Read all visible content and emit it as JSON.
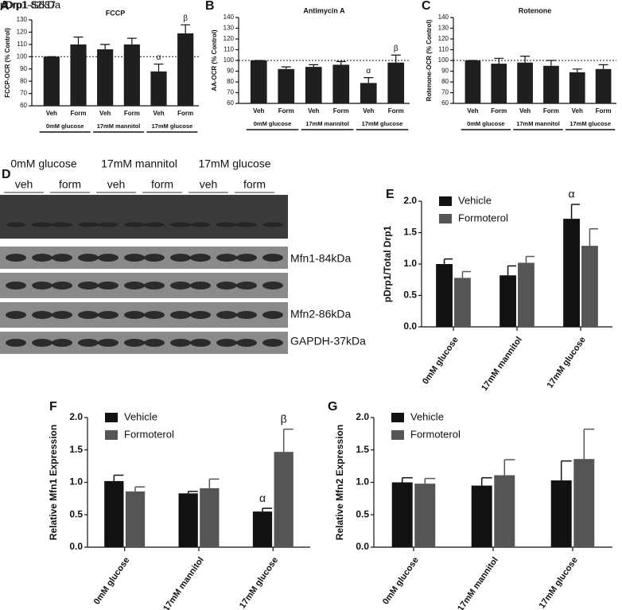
{
  "chart_data": [
    {
      "type": "bar",
      "panel": "A",
      "title": "FCCP",
      "ylabel": "FCCP-OCR (% Control)",
      "categories": [
        "Veh",
        "Form",
        "Veh",
        "Form",
        "Veh",
        "Form"
      ],
      "groups": [
        "0mM glucose",
        "17mM mannitol",
        "17mM glucose"
      ],
      "values": [
        100,
        110,
        106,
        110,
        88,
        119
      ],
      "errors": [
        0,
        6,
        4,
        5,
        6,
        7
      ],
      "annotations": [
        null,
        null,
        null,
        null,
        "α",
        "β"
      ],
      "color": "#1f1f1f",
      "reference_line": 100,
      "ylim": [
        60,
        130
      ],
      "yticks": [
        60,
        70,
        80,
        90,
        100,
        110,
        120,
        130
      ]
    },
    {
      "type": "bar",
      "panel": "B",
      "title": "Antimycin A",
      "ylabel": "AA-OCR (% Control)",
      "categories": [
        "Veh",
        "Form",
        "Veh",
        "Form",
        "Veh",
        "Form"
      ],
      "groups": [
        "0mM glucose",
        "17mM mannitol",
        "17mM glucose"
      ],
      "values": [
        100,
        92,
        94,
        96,
        79,
        98
      ],
      "errors": [
        0,
        2,
        2,
        3,
        5,
        7
      ],
      "annotations": [
        null,
        null,
        null,
        null,
        "α",
        "β"
      ],
      "color": "#1f1f1f",
      "reference_line": 100,
      "ylim": [
        60,
        140
      ],
      "yticks": [
        60,
        70,
        80,
        90,
        100,
        110,
        120,
        130,
        140
      ]
    },
    {
      "type": "bar",
      "panel": "C",
      "title": "Rotenone",
      "ylabel": "Rotenone-OCR (% Control)",
      "categories": [
        "Veh",
        "Form",
        "Veh",
        "Form",
        "Veh",
        "Form"
      ],
      "groups": [
        "0mM glucose",
        "17mM mannitol",
        "17mM glucose"
      ],
      "values": [
        100,
        97,
        98,
        95,
        89,
        92
      ],
      "errors": [
        0,
        5,
        6,
        5,
        3,
        4
      ],
      "annotations": [
        null,
        null,
        null,
        null,
        null,
        null
      ],
      "color": "#1f1f1f",
      "reference_line": 100,
      "ylim": [
        60,
        140
      ],
      "yticks": [
        60,
        70,
        80,
        90,
        100,
        110,
        120,
        130,
        140
      ]
    },
    {
      "type": "grouped_bar",
      "panel": "E",
      "ylabel": "pDrp1/Total Drp1",
      "categories": [
        "0mM glucose",
        "17mM mannitol",
        "17mM glucose"
      ],
      "series": [
        {
          "name": "Vehicle",
          "color": "#111111",
          "values": [
            1.0,
            0.82,
            1.72
          ],
          "errors": [
            0.08,
            0.15,
            0.23
          ],
          "annotations": [
            null,
            null,
            "α"
          ]
        },
        {
          "name": "Formoterol",
          "color": "#555555",
          "values": [
            0.78,
            1.02,
            1.29
          ],
          "errors": [
            0.1,
            0.1,
            0.27
          ],
          "annotations": [
            null,
            null,
            null
          ]
        }
      ],
      "ylim": [
        0,
        2
      ],
      "yticks": [
        {
          "value": 0,
          "label": "0.0"
        },
        0.5,
        {
          "value": 1,
          "label": "1.0"
        },
        1.5,
        {
          "value": 2,
          "label": "2.0"
        }
      ]
    },
    {
      "type": "grouped_bar",
      "panel": "F",
      "ylabel": "Relative Mfn1 Expression",
      "categories": [
        "0mM glucose",
        "17mM mannitol",
        "17mM glucose"
      ],
      "series": [
        {
          "name": "Vehicle",
          "color": "#111111",
          "values": [
            1.02,
            0.83,
            0.55
          ],
          "errors": [
            0.09,
            0.03,
            0.05
          ],
          "annotations": [
            null,
            null,
            "α"
          ]
        },
        {
          "name": "Formoterol",
          "color": "#555555",
          "values": [
            0.86,
            0.91,
            1.47
          ],
          "errors": [
            0.07,
            0.14,
            0.35
          ],
          "annotations": [
            null,
            null,
            "β"
          ]
        }
      ],
      "ylim": [
        0,
        2
      ],
      "yticks": [
        {
          "value": 0,
          "label": "0.0"
        },
        0.5,
        {
          "value": 1,
          "label": "1.0"
        },
        1.5,
        {
          "value": 2,
          "label": "2.0"
        }
      ]
    },
    {
      "type": "grouped_bar",
      "panel": "G",
      "ylabel": "Relative Mfn2 Expression",
      "categories": [
        "0mM glucose",
        "17mM mannitol",
        "17mM glucose"
      ],
      "series": [
        {
          "name": "Vehicle",
          "color": "#111111",
          "values": [
            1.0,
            0.95,
            1.03
          ],
          "errors": [
            0.07,
            0.12,
            0.3
          ],
          "annotations": [
            null,
            null,
            null
          ]
        },
        {
          "name": "Formoterol",
          "color": "#555555",
          "values": [
            0.98,
            1.11,
            1.36
          ],
          "errors": [
            0.08,
            0.24,
            0.46
          ],
          "annotations": [
            null,
            null,
            null
          ]
        }
      ],
      "ylim": [
        0,
        2
      ],
      "yticks": [
        {
          "value": 0,
          "label": "0.0"
        },
        0.5,
        {
          "value": 1,
          "label": "1.0"
        },
        1.5,
        {
          "value": 2,
          "label": "2.0"
        }
      ]
    }
  ],
  "blot": {
    "panel": "D",
    "groups": [
      "0mM glucose",
      "17mM mannitol",
      "17mM glucose"
    ],
    "lanes": [
      "veh",
      "form",
      "veh",
      "form",
      "veh",
      "form"
    ],
    "band_labels": [
      "Mfn1-84kDa",
      "Mfn2-86kDa",
      "GAPDH-37kDa"
    ],
    "overlay_labels": [
      "pDrp1-S637",
      "Drp1-82kDa"
    ]
  }
}
